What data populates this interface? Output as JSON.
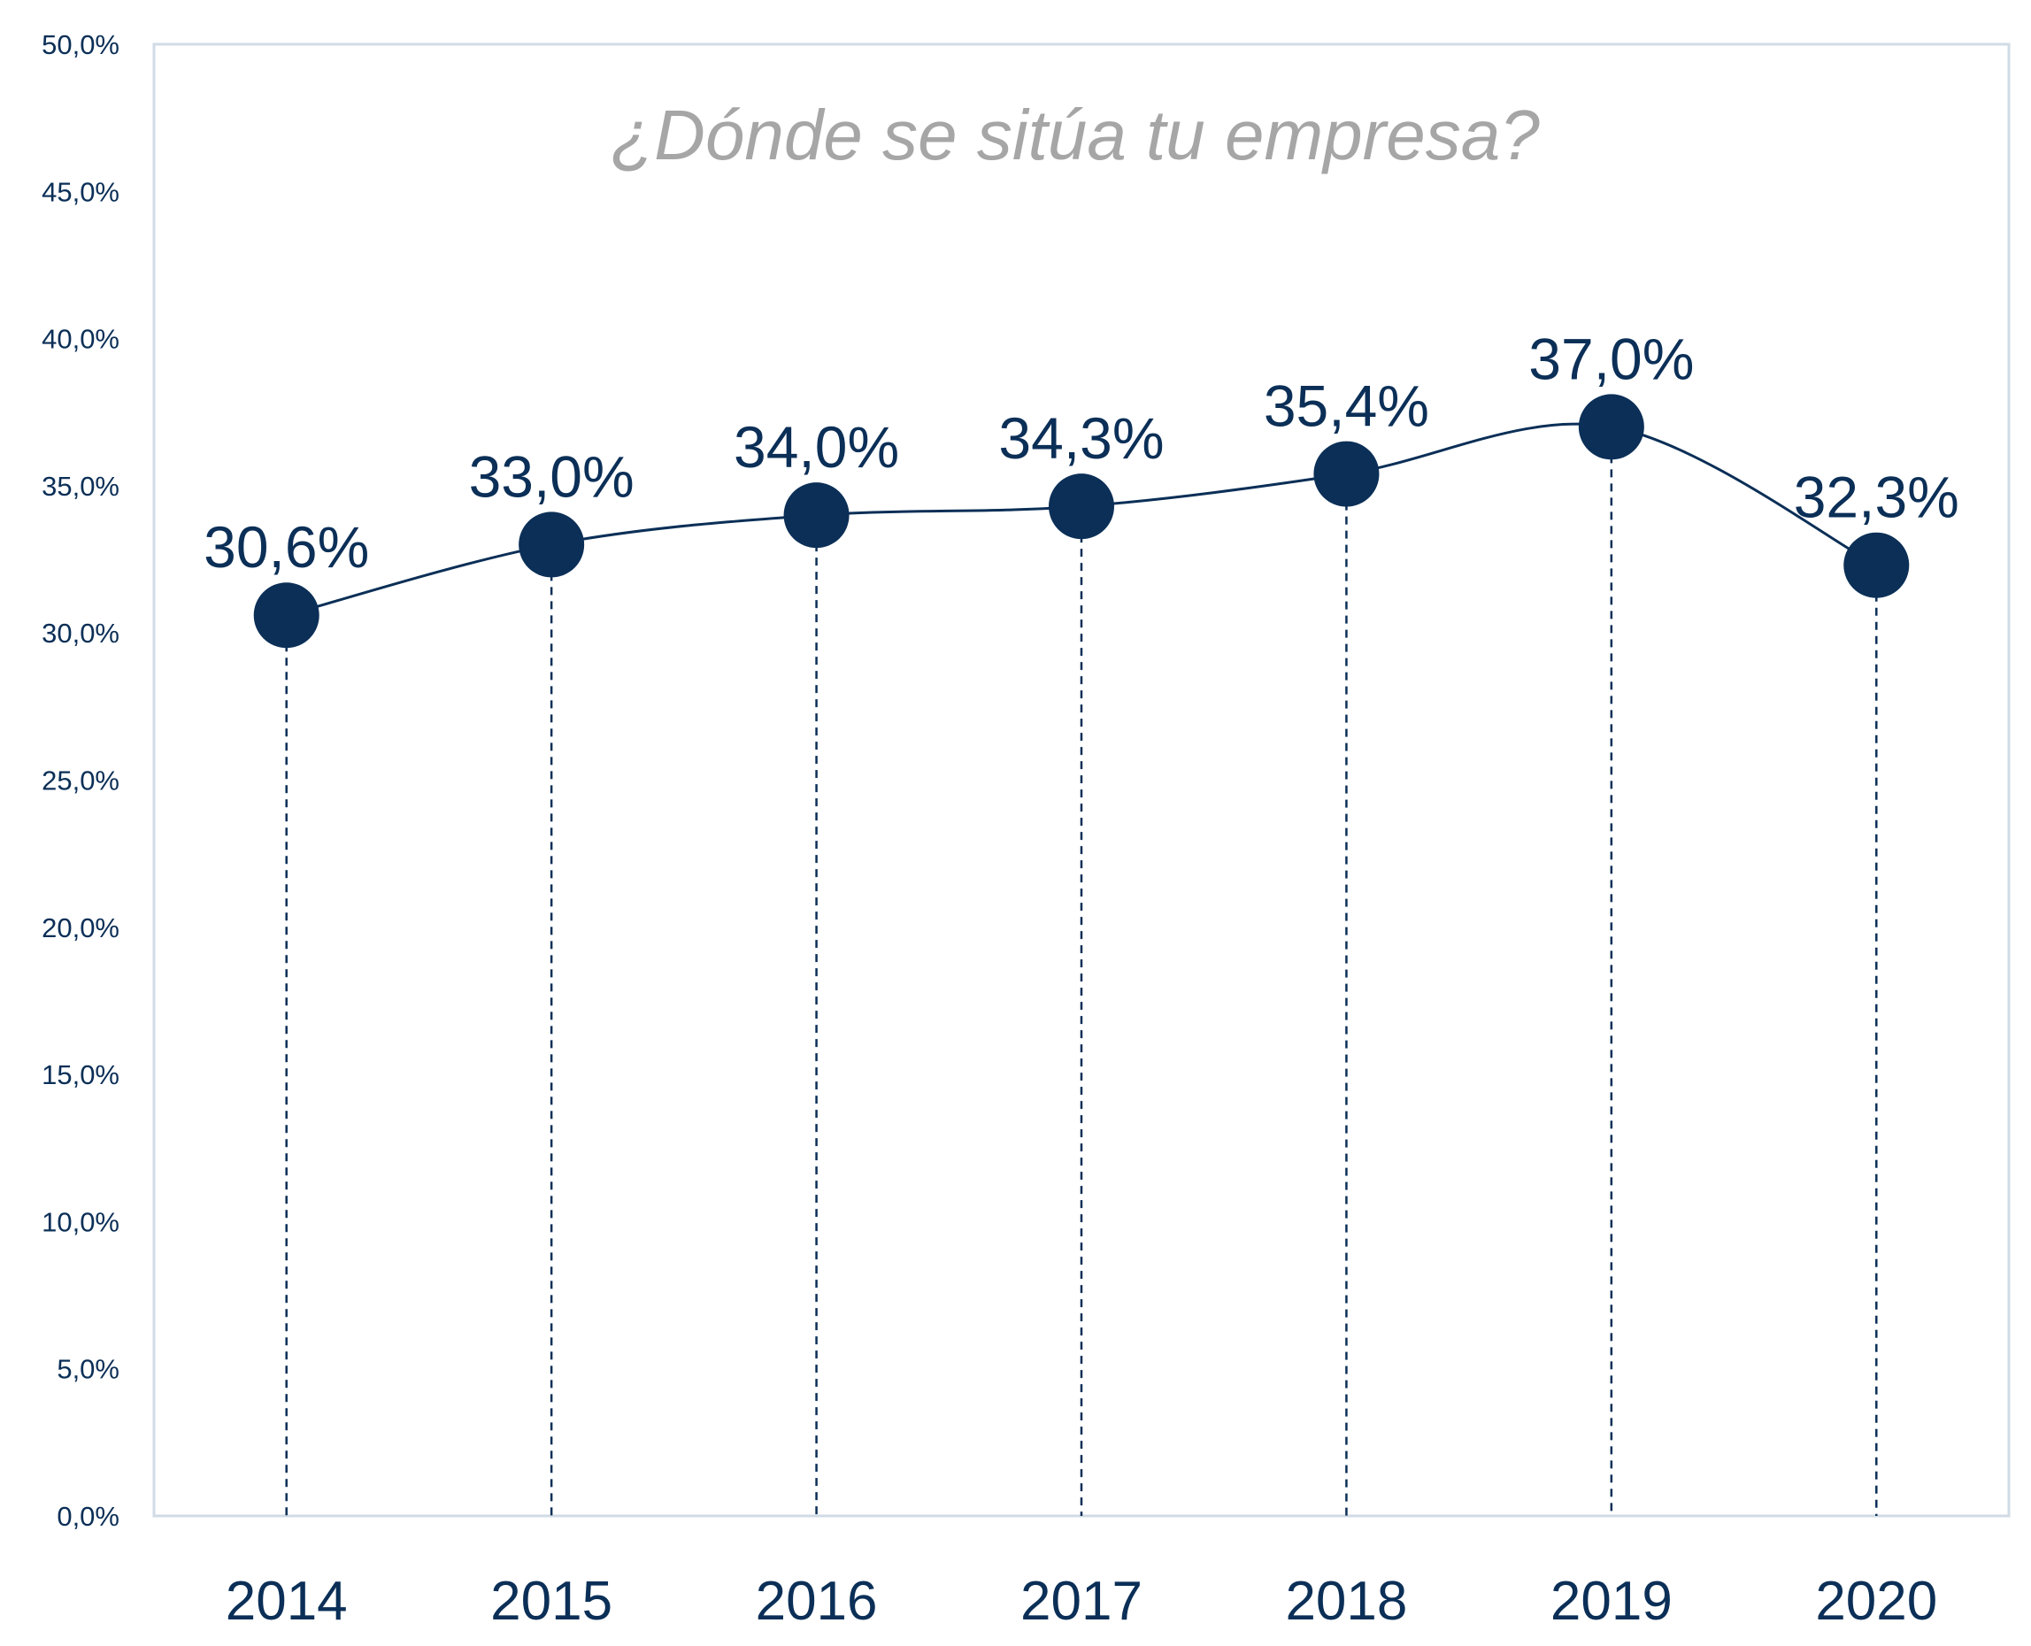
{
  "chart_data": {
    "type": "line",
    "title": "¿Dónde se sitúa tu empresa?",
    "categories": [
      "2014",
      "2015",
      "2016",
      "2017",
      "2018",
      "2019",
      "2020"
    ],
    "values": [
      30.6,
      33.0,
      34.0,
      34.3,
      35.4,
      37.0,
      32.3
    ],
    "data_labels": [
      "30,6%",
      "33,0%",
      "34,0%",
      "34,3%",
      "35,4%",
      "37,0%",
      "32,3%"
    ],
    "ylim": [
      0,
      50
    ],
    "yticks": [
      0,
      5,
      10,
      15,
      20,
      25,
      30,
      35,
      40,
      45,
      50
    ],
    "ytick_labels": [
      "0,0%",
      "5,0%",
      "10,0%",
      "15,0%",
      "20,0%",
      "25,0%",
      "30,0%",
      "35,0%",
      "40,0%",
      "45,0%",
      "50,0%"
    ],
    "xlabel": "",
    "ylabel": "",
    "grid": false,
    "legend": "none",
    "smooth_line": true,
    "drop_lines": "dashed",
    "colors": {
      "series": "#0b2f57",
      "title": "#a6a6a6",
      "axis": "#d0dbe5",
      "background": "#ffffff"
    }
  }
}
